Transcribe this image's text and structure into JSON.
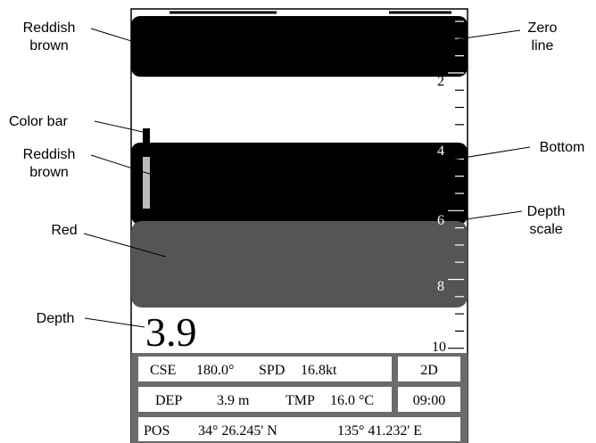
{
  "callouts": {
    "left": [
      {
        "lines": [
          "Reddish",
          "brown"
        ]
      },
      {
        "lines": [
          "Color bar"
        ]
      },
      {
        "lines": [
          "Reddish",
          "brown"
        ]
      },
      {
        "lines": [
          "Red"
        ]
      },
      {
        "lines": [
          "Depth"
        ]
      }
    ],
    "right": [
      {
        "lines": [
          "Zero",
          "line"
        ]
      },
      {
        "lines": [
          "Bottom"
        ]
      },
      {
        "lines": [
          "Depth",
          "scale"
        ]
      }
    ]
  },
  "screen": {
    "depth_scale": [
      "2",
      "4",
      "6",
      "8",
      "10"
    ],
    "depth_readout": "3.9",
    "info": {
      "cse_label": "CSE",
      "cse_value": "180.0°",
      "spd_label": "SPD",
      "spd_value": "16.8kt",
      "mode": "2D",
      "dep_label": "DEP",
      "dep_value": "3.9 m",
      "tmp_label": "TMP",
      "tmp_value": "16.0 °C",
      "time": "09:00",
      "pos_label": "POS",
      "pos_lat": "34° 26.245' N",
      "pos_lon": "135° 41.232' E"
    }
  }
}
